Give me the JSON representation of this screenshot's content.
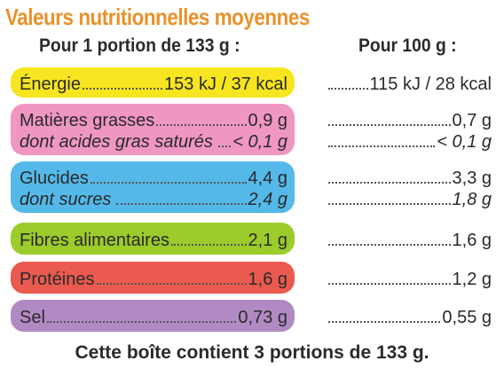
{
  "title": "Valeurs nutritionnelles moyennes",
  "col_portion": "Pour 1 portion de 133 g :",
  "col_100g": "Pour 100 g :",
  "rows": {
    "energie": {
      "label": "Énergie",
      "portion": "153 kJ / 37 kcal",
      "per100": "115 kJ / 28 kcal",
      "color": "#f7e51f"
    },
    "matieres": {
      "label": "Matières grasses",
      "portion": "0,9 g",
      "per100": "0,7 g",
      "color": "#ef96c3"
    },
    "satures": {
      "label": "dont acides gras saturés",
      "portion": "< 0,1 g",
      "per100": "< 0,1 g"
    },
    "glucides": {
      "label": "Glucides",
      "portion": "4,4 g",
      "per100": "3,3 g",
      "color": "#54b9e9"
    },
    "sucres": {
      "label": "dont sucres",
      "portion": "2,4 g",
      "per100": "1,8 g"
    },
    "fibres": {
      "label": "Fibres alimentaires",
      "portion": "2,1 g",
      "per100": "1,6 g",
      "color": "#9ccb2c"
    },
    "proteines": {
      "label": "Protéines",
      "portion": "1,6 g",
      "per100": "1,2 g",
      "color": "#ea5a4f"
    },
    "sel": {
      "label": "Sel",
      "portion": "0,73 g",
      "per100": "0,55 g",
      "color": "#b28ac3"
    }
  },
  "footer": "Cette boîte contient 3 portions de 133 g."
}
